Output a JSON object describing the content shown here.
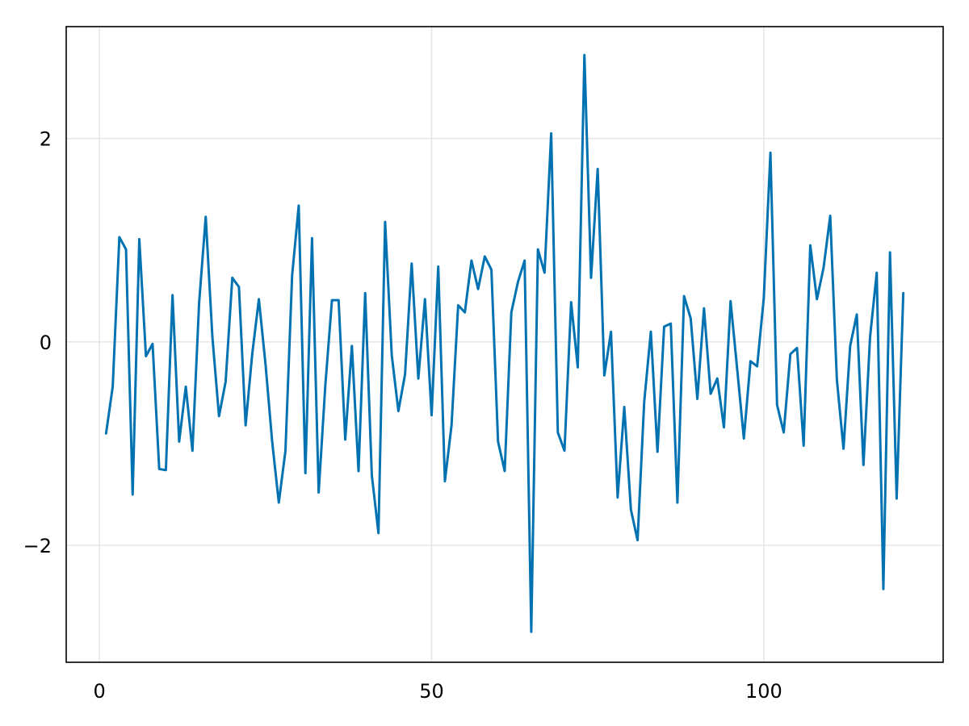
{
  "chart_data": {
    "type": "line",
    "title": "",
    "xlabel": "",
    "ylabel": "",
    "grid": true,
    "xlim": [
      -5,
      127
    ],
    "ylim": [
      -3.15,
      3.1
    ],
    "x_ticks": [
      0,
      50,
      100
    ],
    "x_tick_labels": [
      "0",
      "50",
      "100"
    ],
    "y_ticks": [
      -2,
      0,
      2
    ],
    "y_tick_labels": [
      "−2",
      "0",
      "2"
    ],
    "colors": {
      "line": "#0072b2",
      "grid": "#e5e5e5",
      "frame": "#000000"
    },
    "series": [
      {
        "x": [
          1,
          2,
          3,
          4,
          5,
          6,
          7,
          8,
          9,
          10,
          11,
          12,
          13,
          14,
          15,
          16,
          17,
          18,
          19,
          20,
          21,
          22,
          23,
          24,
          25,
          26,
          27,
          28,
          29,
          30,
          31,
          32,
          33,
          34,
          35,
          36,
          37,
          38,
          39,
          40,
          41,
          42,
          43,
          44,
          45,
          46,
          47,
          48,
          49,
          50,
          51,
          52,
          53,
          54,
          55,
          56,
          57,
          58,
          59,
          60,
          61,
          62,
          63,
          64,
          65,
          66,
          67,
          68,
          69,
          70,
          71,
          72,
          73,
          74,
          75,
          76,
          77,
          78,
          79,
          80,
          81,
          82,
          83,
          84,
          85,
          86,
          87,
          88,
          89,
          90,
          91,
          92,
          93,
          94,
          95,
          96,
          97,
          98,
          99,
          100,
          101,
          102,
          103,
          104,
          105,
          106,
          107,
          108,
          109,
          110,
          111,
          112,
          113,
          114,
          115,
          116,
          117,
          118,
          119,
          120,
          121
        ],
        "values": [
          -0.9,
          -0.44,
          1.03,
          0.91,
          -1.5,
          1.01,
          -0.14,
          -0.02,
          -1.25,
          -1.26,
          0.46,
          -0.98,
          -0.44,
          -1.07,
          0.38,
          1.23,
          0.05,
          -0.73,
          -0.39,
          0.63,
          0.54,
          -0.82,
          -0.12,
          0.42,
          -0.22,
          -0.98,
          -1.58,
          -1.07,
          0.65,
          1.34,
          -1.29,
          1.02,
          -1.48,
          -0.43,
          0.41,
          0.41,
          -0.96,
          -0.04,
          -1.27,
          0.48,
          -1.31,
          -1.88,
          1.18,
          -0.13,
          -0.68,
          -0.32,
          0.77,
          -0.36,
          0.42,
          -0.72,
          0.74,
          -1.37,
          -0.82,
          0.36,
          0.29,
          0.8,
          0.52,
          0.84,
          0.71,
          -0.98,
          -1.27,
          0.29,
          0.59,
          0.8,
          -2.85,
          0.91,
          0.68,
          2.05,
          -0.89,
          -1.07,
          0.39,
          -0.25,
          2.82,
          0.63,
          1.7,
          -0.33,
          0.1,
          -1.53,
          -0.64,
          -1.65,
          -1.95,
          -0.59,
          0.1,
          -1.08,
          0.15,
          0.18,
          -1.58,
          0.45,
          0.23,
          -0.56,
          0.33,
          -0.51,
          -0.36,
          -0.84,
          0.4,
          -0.27,
          -0.95,
          -0.19,
          -0.24,
          0.43,
          1.86,
          -0.62,
          -0.89,
          -0.12,
          -0.06,
          -1.02,
          0.95,
          0.42,
          0.73,
          1.24,
          -0.37,
          -1.05,
          -0.04,
          0.27,
          -1.21,
          0.05,
          0.68,
          -2.43,
          0.88,
          -1.54,
          0.48
        ]
      }
    ]
  }
}
